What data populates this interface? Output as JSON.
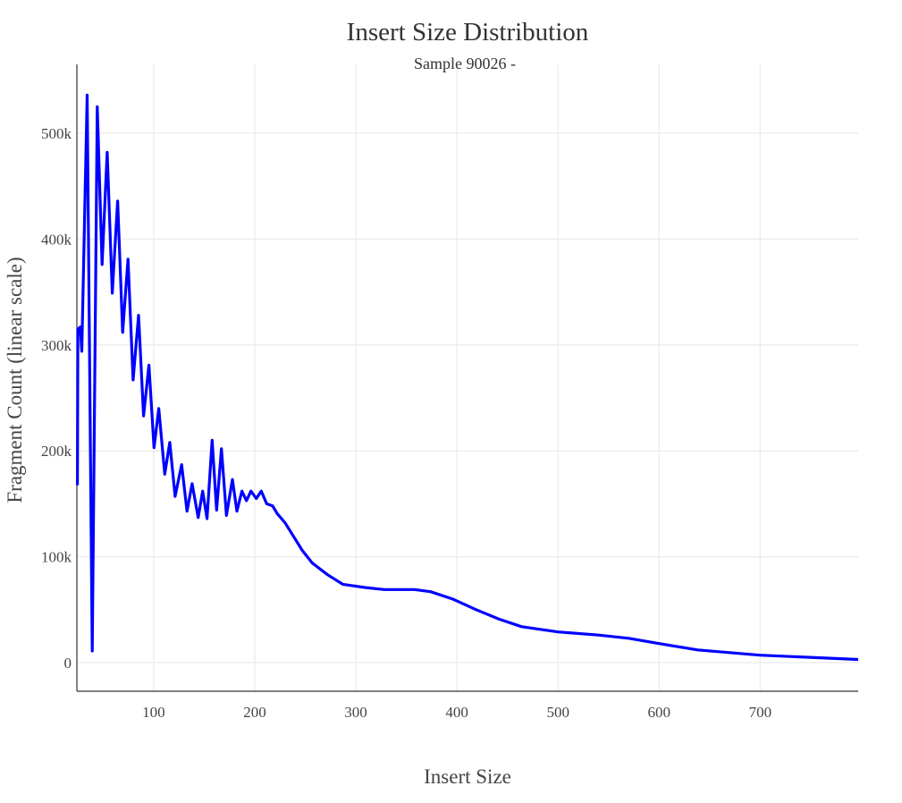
{
  "chart_data": {
    "type": "line",
    "title": "Insert Size Distribution",
    "subtitle": "Sample 90026 -",
    "xlabel": "Insert Size",
    "ylabel": "Fragment Count (linear scale)",
    "xlim": [
      24,
      797
    ],
    "ylim": [
      -27000,
      565000
    ],
    "x_ticks": [
      100,
      200,
      300,
      400,
      500,
      600,
      700
    ],
    "x_tick_labels": [
      "100",
      "200",
      "300",
      "400",
      "500",
      "600",
      "700"
    ],
    "y_ticks": [
      0,
      100000,
      200000,
      300000,
      400000,
      500000
    ],
    "y_tick_labels": [
      "0",
      "100k",
      "200k",
      "300k",
      "400k",
      "500k"
    ],
    "grid": true,
    "line_color": "#0000ff",
    "series": [
      {
        "x": [
          24.5,
          25,
          27.4,
          28.9,
          34.2,
          39.2,
          44.2,
          48.9,
          54,
          59,
          64.3,
          69.3,
          74.6,
          79.6,
          85,
          90,
          95.3,
          100.3,
          105,
          110.9,
          115.9,
          121.2,
          127.7,
          133,
          138,
          144,
          148.4,
          152.8,
          157.8,
          162.2,
          167,
          172,
          177.9,
          182.3,
          187.3,
          191.8,
          196.2,
          201.5,
          206.5,
          211.8,
          217.7,
          222,
          230,
          247,
          257,
          272,
          287,
          309,
          328,
          358,
          374,
          396,
          419,
          442,
          464,
          500,
          540,
          570,
          600,
          638,
          700,
          797
        ],
        "y": [
          167600,
          315000,
          317000,
          294000,
          536000,
          11000,
          525000,
          376000,
          482000,
          349000,
          436000,
          312000,
          381000,
          267000,
          328000,
          233000,
          281000,
          203000,
          240000,
          178000,
          208000,
          157000,
          187000,
          143000,
          169000,
          137000,
          162000,
          136000,
          210000,
          144000,
          202000,
          139000,
          173000,
          143000,
          162000,
          153000,
          162000,
          155000,
          162000,
          150000,
          148000,
          141000,
          132000,
          106000,
          94000,
          83000,
          74000,
          71000,
          69000,
          69000,
          67000,
          60000,
          50000,
          41000,
          34000,
          29000,
          26000,
          23000,
          18000,
          12000,
          7000,
          3000
        ]
      }
    ]
  }
}
